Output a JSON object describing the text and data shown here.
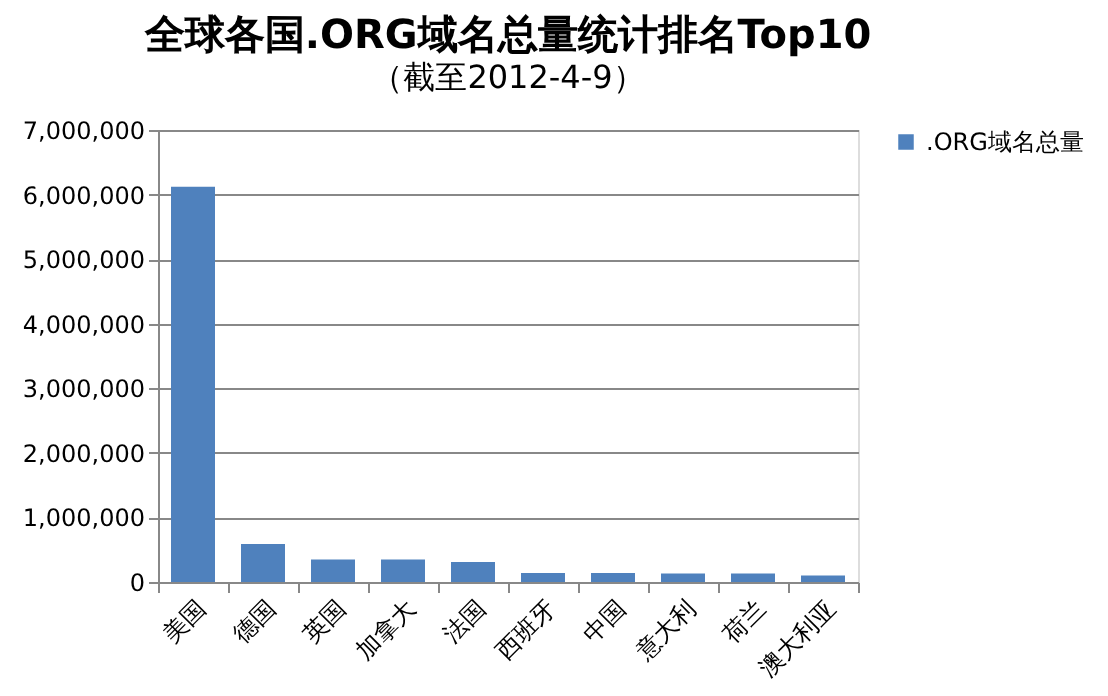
{
  "chart_data": {
    "type": "bar",
    "title": "全球各国.ORG域名总量统计排名Top10",
    "subtitle": "（截至2012-4-9）",
    "categories": [
      "美国",
      "德国",
      "英国",
      "加拿大",
      "法国",
      "西班牙",
      "中国",
      "意大利",
      "荷兰",
      "澳大利亚"
    ],
    "series": [
      {
        "name": ".ORG域名总量",
        "color": "#4f81bd",
        "values": [
          6120000,
          590000,
          350000,
          350000,
          310000,
          140000,
          140000,
          130000,
          130000,
          100000
        ]
      }
    ],
    "ylim": [
      0,
      7000000
    ],
    "yticks": [
      0,
      {
        "value": 1000000,
        "label": "1,000,000"
      },
      {
        "value": 2000000,
        "label": "2,000,000"
      },
      {
        "value": 3000000,
        "label": "3,000,000"
      },
      {
        "value": 4000000,
        "label": "4,000,000"
      },
      {
        "value": 5000000,
        "label": "5,000,000"
      },
      {
        "value": 6000000,
        "label": "6,000,000"
      },
      {
        "value": 7000000,
        "label": "7,000,000"
      }
    ],
    "grid": "y",
    "legend": "right"
  }
}
